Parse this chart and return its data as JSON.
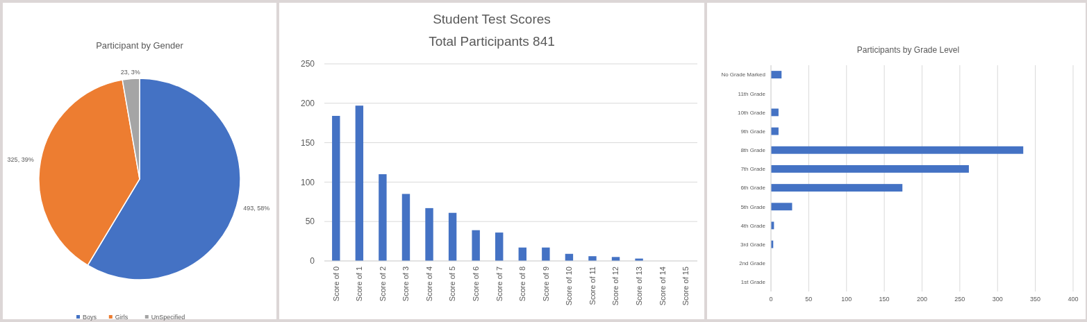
{
  "chart_data": [
    {
      "type": "pie",
      "title": "Participant by  Gender",
      "categories": [
        "Boys",
        "Girls",
        "UnSpecified"
      ],
      "values": [
        493,
        325,
        23
      ],
      "colors": [
        "#4472c4",
        "#ed7d31",
        "#a5a5a5"
      ],
      "value_labels": [
        "493, 58%",
        "325, 39%",
        "23, 3%"
      ],
      "legend": "bottom"
    },
    {
      "type": "bar",
      "title": "Student Test Scores",
      "subtitle": "Total Participants 841",
      "categories": [
        "Score of 0",
        "Score of 1",
        "Score of 2",
        "Score of 3",
        "Score of 4",
        "Score of 5",
        "Score of 6",
        "Score of 7",
        "Score of 8",
        "Score of 9",
        "Score of 10",
        "Score of 11",
        "Score of 12",
        "Score of 13",
        "Score of 14",
        "Score of 15"
      ],
      "values": [
        184,
        197,
        110,
        85,
        67,
        61,
        39,
        36,
        17,
        17,
        9,
        6,
        5,
        3,
        0,
        0
      ],
      "color": "#4472c4",
      "ylim": [
        0,
        250
      ],
      "yticks": [
        0,
        50,
        100,
        150,
        200,
        250
      ],
      "grid": "y"
    },
    {
      "type": "bar",
      "orientation": "horizontal",
      "title": "Participants by Grade Level",
      "categories": [
        "No Grade Marked",
        "11th Grade",
        "10th Grade",
        "9th Grade",
        "8th Grade",
        "7th Grade",
        "6th Grade",
        "5th Grade",
        "4th Grade",
        "3rd Grade",
        "2nd Grade",
        "1st Grade"
      ],
      "values": [
        14,
        0,
        10,
        10,
        334,
        262,
        174,
        28,
        4,
        3,
        0,
        0
      ],
      "color": "#4472c4",
      "xlim": [
        0,
        400
      ],
      "xticks": [
        0,
        50,
        100,
        150,
        200,
        250,
        300,
        350,
        400
      ],
      "grid": "x"
    }
  ]
}
